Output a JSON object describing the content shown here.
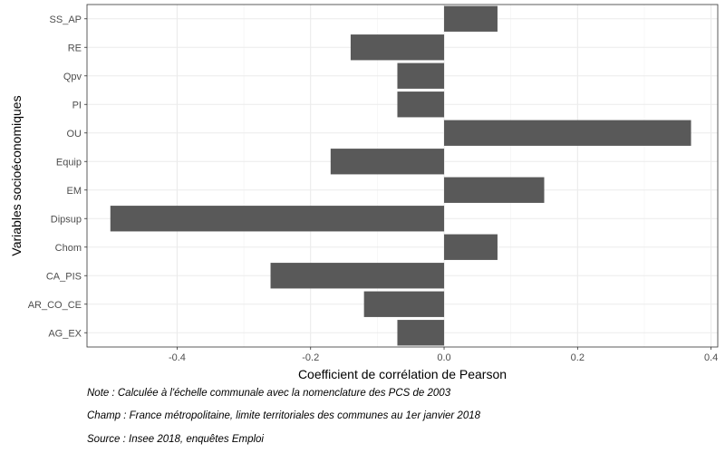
{
  "chart_data": {
    "type": "bar",
    "orientation": "horizontal",
    "categories": [
      "SS_AP",
      "RE",
      "Qpv",
      "PI",
      "OU",
      "Equip",
      "EM",
      "Dipsup",
      "Chom",
      "CA_PIS",
      "AR_CO_CE",
      "AG_EX"
    ],
    "values": [
      0.08,
      -0.14,
      -0.07,
      -0.07,
      0.37,
      -0.17,
      0.15,
      -0.5,
      0.08,
      -0.26,
      -0.12,
      -0.07
    ],
    "xlabel": "Coefficient de corrélation de Pearson",
    "ylabel": "Variables socioéconomiques",
    "xlim": [
      -0.535,
      0.41
    ],
    "xticks": [
      -0.4,
      -0.2,
      0.0,
      0.2,
      0.4
    ],
    "xtick_labels": [
      "-0.4",
      "-0.2",
      "0.0",
      "0.2",
      "0.4"
    ],
    "bar_color": "#595959",
    "grid": true
  },
  "notes": {
    "note": "Note : Calculée à l'échelle communale avec la nomenclature des PCS de 2003",
    "champ": "Champ : France métropolitaine, limite territoriales des communes au 1er janvier 2018",
    "source": "Source : Insee 2018, enquêtes Emploi"
  }
}
